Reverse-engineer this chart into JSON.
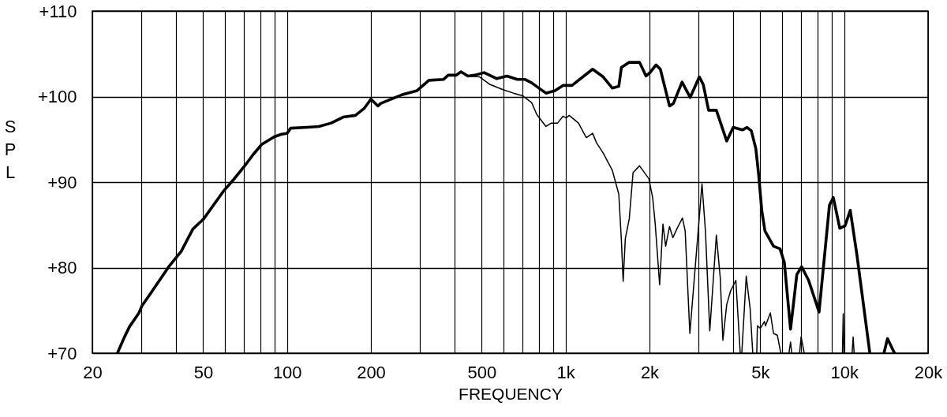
{
  "chart_data": {
    "type": "line",
    "xlabel": "FREQUENCY",
    "ylabel": "SPL",
    "log": "x",
    "grid": true,
    "line_style": "solid",
    "xlim": [
      20,
      20000
    ],
    "ylim": [
      70,
      110
    ],
    "xticks": [
      20,
      {
        "value": 30,
        "label": null
      },
      {
        "value": 40,
        "label": null
      },
      50,
      {
        "value": 60,
        "label": null
      },
      {
        "value": 70,
        "label": null
      },
      {
        "value": 80,
        "label": null
      },
      {
        "value": 90,
        "label": null
      },
      100,
      200,
      {
        "value": 300,
        "label": null
      },
      {
        "value": 400,
        "label": null
      },
      500,
      {
        "value": 600,
        "label": null
      },
      {
        "value": 700,
        "label": null
      },
      {
        "value": 800,
        "label": null
      },
      {
        "value": 900,
        "label": null
      },
      {
        "value": 1000,
        "label": "1k"
      },
      {
        "value": 2000,
        "label": "2k"
      },
      {
        "value": 3000,
        "label": null
      },
      {
        "value": 4000,
        "label": null
      },
      {
        "value": 5000,
        "label": "5k"
      },
      {
        "value": 6000,
        "label": null
      },
      {
        "value": 7000,
        "label": null
      },
      {
        "value": 8000,
        "label": null
      },
      {
        "value": 9000,
        "label": null
      },
      {
        "value": 10000,
        "label": "10k"
      },
      {
        "value": 20000,
        "label": "20k"
      }
    ],
    "yticks": [
      {
        "value": 70,
        "label": "+70"
      },
      {
        "value": 80,
        "label": "+80"
      },
      {
        "value": 90,
        "label": "+90"
      },
      {
        "value": 100,
        "label": "+100"
      },
      {
        "value": 110,
        "label": "+110"
      }
    ],
    "series": [
      {
        "color": "#000000",
        "x": [
          24.6,
          26.1,
          27.2,
          29.4,
          30.1,
          32.4,
          37.6,
          41.7,
          45.9,
          50.2,
          59,
          64.3,
          70.1,
          75.5,
          81.1,
          90,
          95.6,
          100,
          103,
          118,
          130,
          144,
          159,
          176,
          189,
          200,
          212,
          217,
          258,
          293,
          323,
          364,
          379,
          405,
          421,
          446,
          471,
          510,
          565,
          616,
          671,
          716,
          755,
          850,
          916,
          978,
          1054,
          1250,
          1364,
          1470,
          1552,
          1586,
          1692,
          1842,
          1944,
          2008,
          2110,
          2188,
          2360,
          2438,
          2618,
          2800,
          3020,
          3120,
          3260,
          3476,
          3786,
          3996,
          4308,
          4480,
          4641,
          4818,
          4933,
          5063,
          5193,
          5576,
          5884,
          6097,
          6418,
          6760,
          7032,
          7454,
          8124,
          8852,
          9140,
          9640,
          10070,
          10514,
          11096,
          12360,
          13100,
          13890,
          14300,
          15160
        ],
        "values": [
          70,
          71.9,
          73.1,
          74.7,
          75.5,
          77,
          80.1,
          81.9,
          84.5,
          85.7,
          88.9,
          90.3,
          91.8,
          93.2,
          94.4,
          95.3,
          95.6,
          95.7,
          96.3,
          96.4,
          96.5,
          96.9,
          97.6,
          97.8,
          98.6,
          99.7,
          98.9,
          99.2,
          100.2,
          100.7,
          101.9,
          102,
          102.5,
          102.5,
          102.9,
          102.4,
          102.5,
          102.8,
          102.1,
          102.4,
          102,
          102,
          101.6,
          100.4,
          100.7,
          101.3,
          101.3,
          103.2,
          102.3,
          101,
          101.2,
          103.4,
          104,
          104,
          102.4,
          102.8,
          103.7,
          103.2,
          98.9,
          99.2,
          101.7,
          99.9,
          102.3,
          101.4,
          98.4,
          98.4,
          94.8,
          96.4,
          96.1,
          96.4,
          96,
          93.9,
          90.8,
          86.6,
          84.3,
          82.5,
          82.2,
          80.6,
          72.8,
          79.2,
          80.1,
          78.5,
          74.8,
          87.3,
          88.2,
          84.6,
          84.9,
          86.7,
          81.6,
          70,
          null,
          70,
          71.7,
          70
        ]
      },
      {
        "color": "#000000",
        "x": [
          24.6,
          26.1,
          27.2,
          29.4,
          30.1,
          32.4,
          37.6,
          41.7,
          45.9,
          50.2,
          59,
          64.3,
          70.1,
          75.5,
          81.1,
          90,
          95.6,
          100,
          103,
          118,
          130,
          144,
          159,
          176,
          189,
          200,
          212,
          217,
          258,
          293,
          323,
          364,
          379,
          405,
          421,
          446,
          491,
          536,
          596,
          650,
          700,
          755,
          788,
          850,
          888,
          936,
          978,
          1004,
          1030,
          1112,
          1186,
          1250,
          1291,
          1364,
          1470,
          1552,
          1586,
          1609,
          1638,
          1692,
          1746,
          1842,
          1989,
          2053,
          2096,
          2175,
          2235,
          2286,
          2360,
          2427,
          2514,
          2627,
          2686,
          2792,
          3087,
          3176,
          3292,
          3476,
          3590,
          3668,
          3788,
          3912,
          4084,
          4234,
          4260,
          4290,
          4450,
          4596,
          4696,
          4780,
          4854,
          4880,
          5000,
          5172,
          5219,
          5432,
          5576,
          5754,
          5921,
          6100,
          6334,
          6418,
          6482,
          6700,
          6914,
          7004,
          7186,
          8500,
          9854,
          9920,
          9984,
          10300,
          10678,
          10768,
          10858
        ],
        "values": [
          70,
          71.9,
          73.1,
          74.7,
          75.5,
          77,
          80.1,
          81.9,
          84.5,
          85.7,
          88.9,
          90.3,
          91.8,
          93.2,
          94.4,
          95.3,
          95.6,
          95.7,
          96.3,
          96.4,
          96.5,
          96.9,
          97.6,
          97.8,
          98.6,
          99.7,
          98.9,
          99.2,
          100.2,
          100.7,
          101.9,
          102,
          102.5,
          102.5,
          102.9,
          102.4,
          102.3,
          101.4,
          100.8,
          100.4,
          100.1,
          99.3,
          97.9,
          96.5,
          96.9,
          96.9,
          97.7,
          97.5,
          97.8,
          96.9,
          95.2,
          95.7,
          94.6,
          93.4,
          91.4,
          88.6,
          83.1,
          78.4,
          83.4,
          85.7,
          91.1,
          91.9,
          90.4,
          88.2,
          85.2,
          78,
          85.1,
          82.5,
          84.8,
          83.5,
          84.6,
          85.8,
          84.3,
          72.3,
          89.8,
          84.3,
          72.6,
          83.8,
          78.8,
          71.5,
          75.7,
          77.3,
          78.5,
          70,
          null,
          70,
          79,
          75.2,
          70,
          null,
          70,
          73.2,
          72.9,
          73.7,
          73.2,
          74.7,
          72.3,
          72.1,
          70,
          null,
          70,
          71.3,
          70,
          null,
          70,
          71.9,
          70,
          null,
          70,
          74.6,
          70,
          null,
          70,
          71.9,
          70
        ]
      }
    ]
  }
}
